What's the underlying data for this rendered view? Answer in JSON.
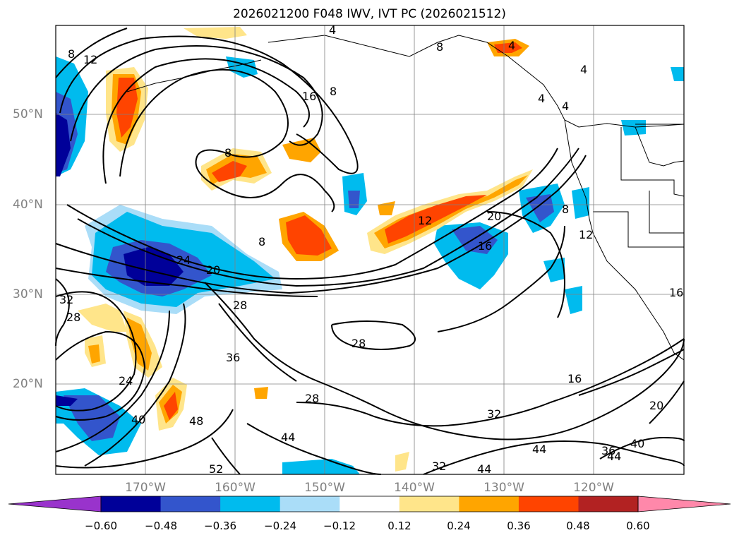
{
  "title": "2026021200 F048 IWV, IVT PC (2026021512)",
  "lat_labels": [
    "50°N",
    "40°N",
    "30°N",
    "20°N"
  ],
  "lon_labels": [
    "170°W",
    "160°W",
    "150°W",
    "140°W",
    "130°W",
    "120°W"
  ],
  "colorbar": {
    "ticks": [
      "−0.60",
      "−0.48",
      "−0.36",
      "−0.24",
      "−0.12",
      "0.12",
      "0.24",
      "0.36",
      "0.48",
      "0.60"
    ],
    "colors": [
      "#9933cc",
      "#000099",
      "#3355cc",
      "#00bbee",
      "#aaddf8",
      "#ffffff",
      "#ffe58a",
      "#ffa500",
      "#ff4400",
      "#b22222",
      "#ff88aa"
    ]
  },
  "contour_labels": [
    "8",
    "12",
    "16",
    "8",
    "4",
    "8",
    "4",
    "4",
    "4",
    "4",
    "8",
    "8",
    "12",
    "20",
    "16",
    "8",
    "12",
    "24",
    "20",
    "28",
    "32",
    "28",
    "28",
    "24",
    "36",
    "28",
    "16",
    "32",
    "20",
    "40",
    "48",
    "44",
    "44",
    "36",
    "40",
    "44",
    "52",
    "32",
    "44",
    "16"
  ],
  "colors": {
    "land_outline": "#000000",
    "grid": "#808080",
    "contour": "#000000"
  }
}
